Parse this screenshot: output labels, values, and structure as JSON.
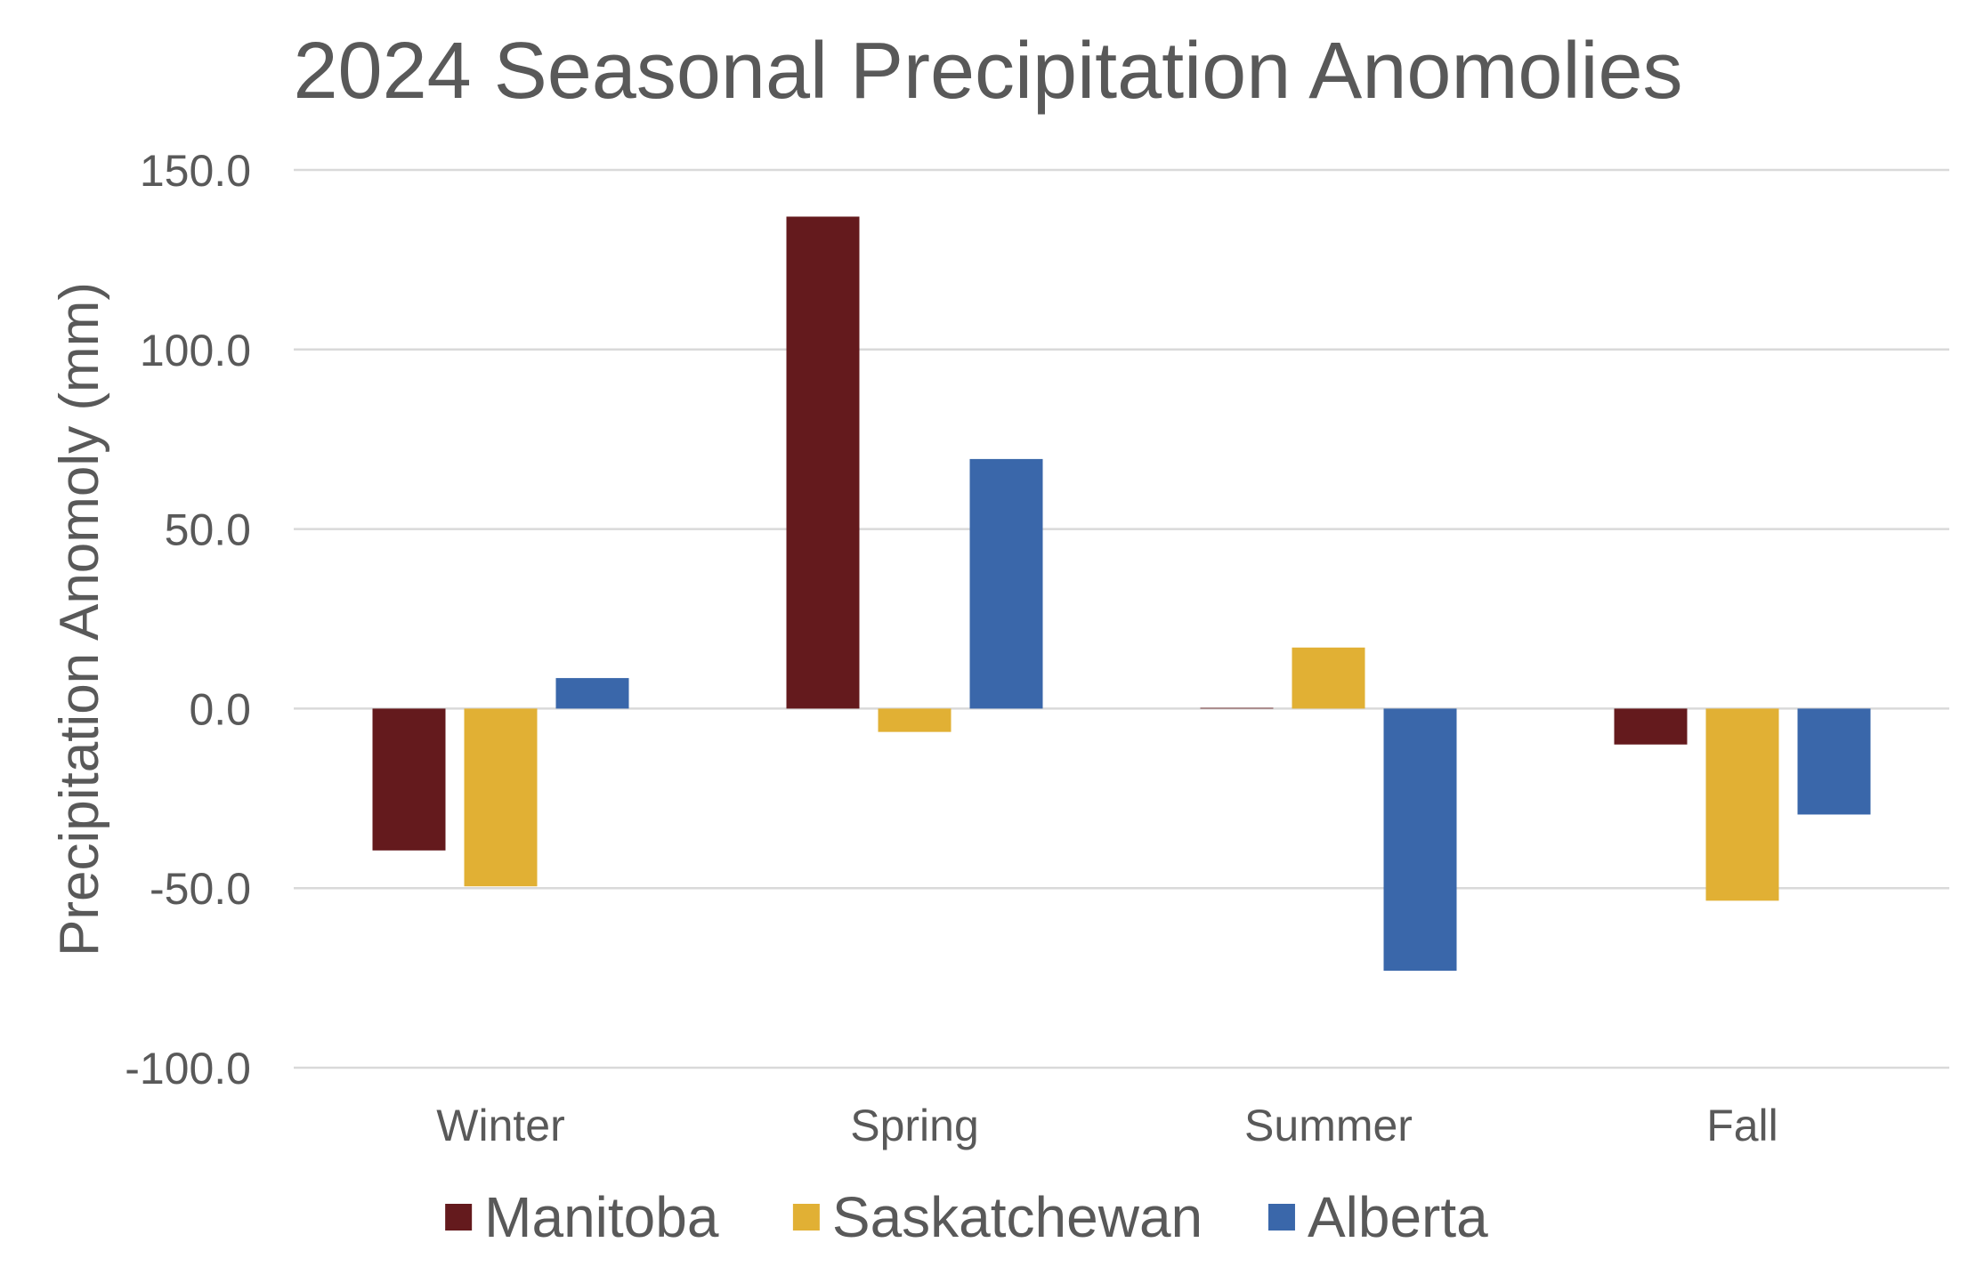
{
  "chart_data": {
    "type": "bar",
    "title": "2024 Seasonal Precipitation Anomolies",
    "xlabel": "",
    "ylabel": "Precipitation Anomoly (mm)",
    "categories": [
      "Winter",
      "Spring",
      "Summer",
      "Fall"
    ],
    "series": [
      {
        "name": "Manitoba",
        "color": "#641a1d",
        "values": [
          -39.5,
          137.0,
          0.2,
          -10.0
        ]
      },
      {
        "name": "Saskatchewan",
        "color": "#e1b034",
        "values": [
          -49.5,
          -6.5,
          17.0,
          -53.5
        ]
      },
      {
        "name": "Alberta",
        "color": "#3a67aa",
        "values": [
          8.5,
          69.5,
          -73.0,
          -29.5
        ]
      }
    ],
    "ylim": [
      -100,
      150
    ],
    "yticks": [
      150,
      100,
      50,
      0,
      -50,
      -100
    ],
    "ytick_labels": [
      "150.0",
      "100.0",
      "50.0",
      "0.0",
      "-50.0",
      "-100.0"
    ],
    "grid": true,
    "legend_position": "bottom"
  }
}
